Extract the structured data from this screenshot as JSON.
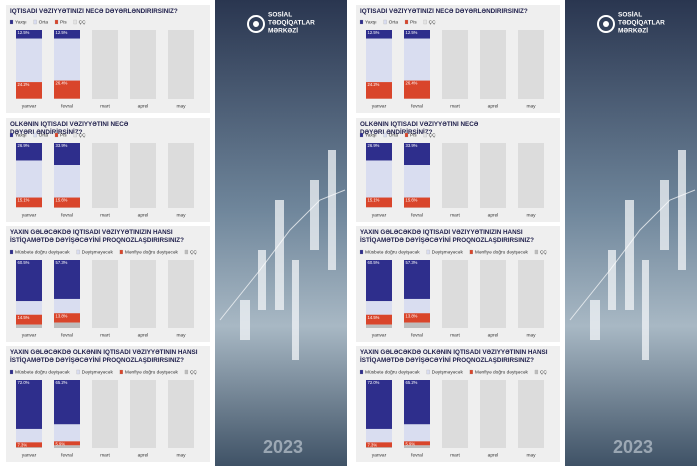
{
  "brand": {
    "lines": [
      "SOSİAL",
      "TƏDQİQATLAR",
      "MƏRKƏZİ"
    ],
    "year": "2023"
  },
  "chart_data": [
    {
      "type": "bar",
      "stacked": true,
      "title": "İQTİSADİ VƏZİYYƏTİNİZİ NECƏ DƏYƏRLƏNDİRİRSİNİZ?",
      "categories": [
        "yanvar",
        "fevral",
        "mart",
        "aprel",
        "may"
      ],
      "series": [
        {
          "name": "Yaxşı",
          "color": "#2e2e8c",
          "values": [
            12.5,
            12.5,
            null,
            null,
            null
          ],
          "value_labels": [
            "12.5%",
            "12.5%",
            null,
            null,
            null
          ]
        },
        {
          "name": "Orta",
          "color": "#d9ddf0",
          "values": [
            63.0,
            60.8,
            null,
            null,
            null
          ]
        },
        {
          "name": "Pis",
          "color": "#d9452b",
          "values": [
            24.2,
            26.4,
            null,
            null,
            null
          ],
          "value_labels": [
            "24.2%",
            "26.4%",
            null,
            null,
            null
          ]
        },
        {
          "name": "ÇÇ",
          "color": "#e4e4e4",
          "values": [
            0.3,
            0.3,
            null,
            null,
            null
          ]
        }
      ]
    },
    {
      "type": "bar",
      "stacked": true,
      "title": "ÖLKƏNİN İQTİSADİ VƏZİYYƏTİNİ NECƏ DƏYƏRLƏNDİRİRSİNİZ?",
      "categories": [
        "yanvar",
        "fevral",
        "mart",
        "aprel",
        "may"
      ],
      "series": [
        {
          "name": "Yaxşı",
          "color": "#2e2e8c",
          "values": [
            26.9,
            33.9,
            null,
            null,
            null
          ],
          "value_labels": [
            "26.9%",
            "33.9%",
            null,
            null,
            null
          ]
        },
        {
          "name": "Orta",
          "color": "#d9ddf0",
          "values": [
            57.0,
            50.0,
            null,
            null,
            null
          ]
        },
        {
          "name": "Pis",
          "color": "#d9452b",
          "values": [
            15.1,
            15.6,
            null,
            null,
            null
          ],
          "value_labels": [
            "15.1%",
            "15.6%",
            null,
            null,
            null
          ]
        },
        {
          "name": "ÇÇ",
          "color": "#e4e4e4",
          "values": [
            1.0,
            0.5,
            null,
            null,
            null
          ]
        }
      ]
    },
    {
      "type": "bar",
      "stacked": true,
      "title": "YAXIN GƏLƏCƏKDƏ İQTİSADİ VƏZİYYƏTİNİZİN HANSI İSTİQAMƏTDƏ DƏYİŞƏCƏYİNİ PROQNOZLAŞDIRIRSINIZ?",
      "categories": [
        "yanvar",
        "fevral",
        "mart",
        "aprel",
        "may"
      ],
      "series": [
        {
          "name": "Müsbətə doğru dəyişəcək",
          "color": "#2e2e8c",
          "values": [
            60.5,
            57.3,
            null,
            null,
            null
          ],
          "value_labels": [
            "60.5%",
            "57.3%",
            null,
            null,
            null
          ]
        },
        {
          "name": "Dəyişməyəcək",
          "color": "#d9ddf0",
          "values": [
            20.0,
            21.0,
            null,
            null,
            null
          ]
        },
        {
          "name": "Mənfiyə doğru dəyişəcək",
          "color": "#d9452b",
          "values": [
            14.5,
            13.8,
            null,
            null,
            null
          ],
          "value_labels": [
            "14.5%",
            "13.8%",
            null,
            null,
            null
          ]
        },
        {
          "name": "ÇÇ",
          "color": "#bdbdbd",
          "values": [
            5.0,
            7.9,
            null,
            null,
            null
          ]
        }
      ]
    },
    {
      "type": "bar",
      "stacked": true,
      "title": "YAXIN GƏLƏCƏKDƏ ÖLKƏNİN İQTİSADİ VƏZİYYƏTİNİN HANSI İSTİQAMƏTDƏ DƏYİŞƏCƏYİNİ PROQNOZLAŞDIRIRSINIZ?",
      "categories": [
        "yanvar",
        "fevral",
        "mart",
        "aprel",
        "may"
      ],
      "series": [
        {
          "name": "Müsbətə doğru dəyişəcək",
          "color": "#2e2e8c",
          "values": [
            72.0,
            65.2,
            null,
            null,
            null
          ],
          "value_labels": [
            "72.0%",
            "65.2%",
            null,
            null,
            null
          ]
        },
        {
          "name": "Dəyişməyəcək",
          "color": "#d9ddf0",
          "values": [
            19.7,
            25.0,
            null,
            null,
            null
          ]
        },
        {
          "name": "Mənfiyə doğru dəyişəcək",
          "color": "#d9452b",
          "values": [
            7.3,
            5.9,
            null,
            null,
            null
          ],
          "value_labels": [
            "7.3%",
            "5.9%",
            null,
            null,
            null
          ]
        },
        {
          "name": "ÇÇ",
          "color": "#bdbdbd",
          "values": [
            1.0,
            3.9,
            null,
            null,
            null
          ]
        }
      ]
    }
  ]
}
